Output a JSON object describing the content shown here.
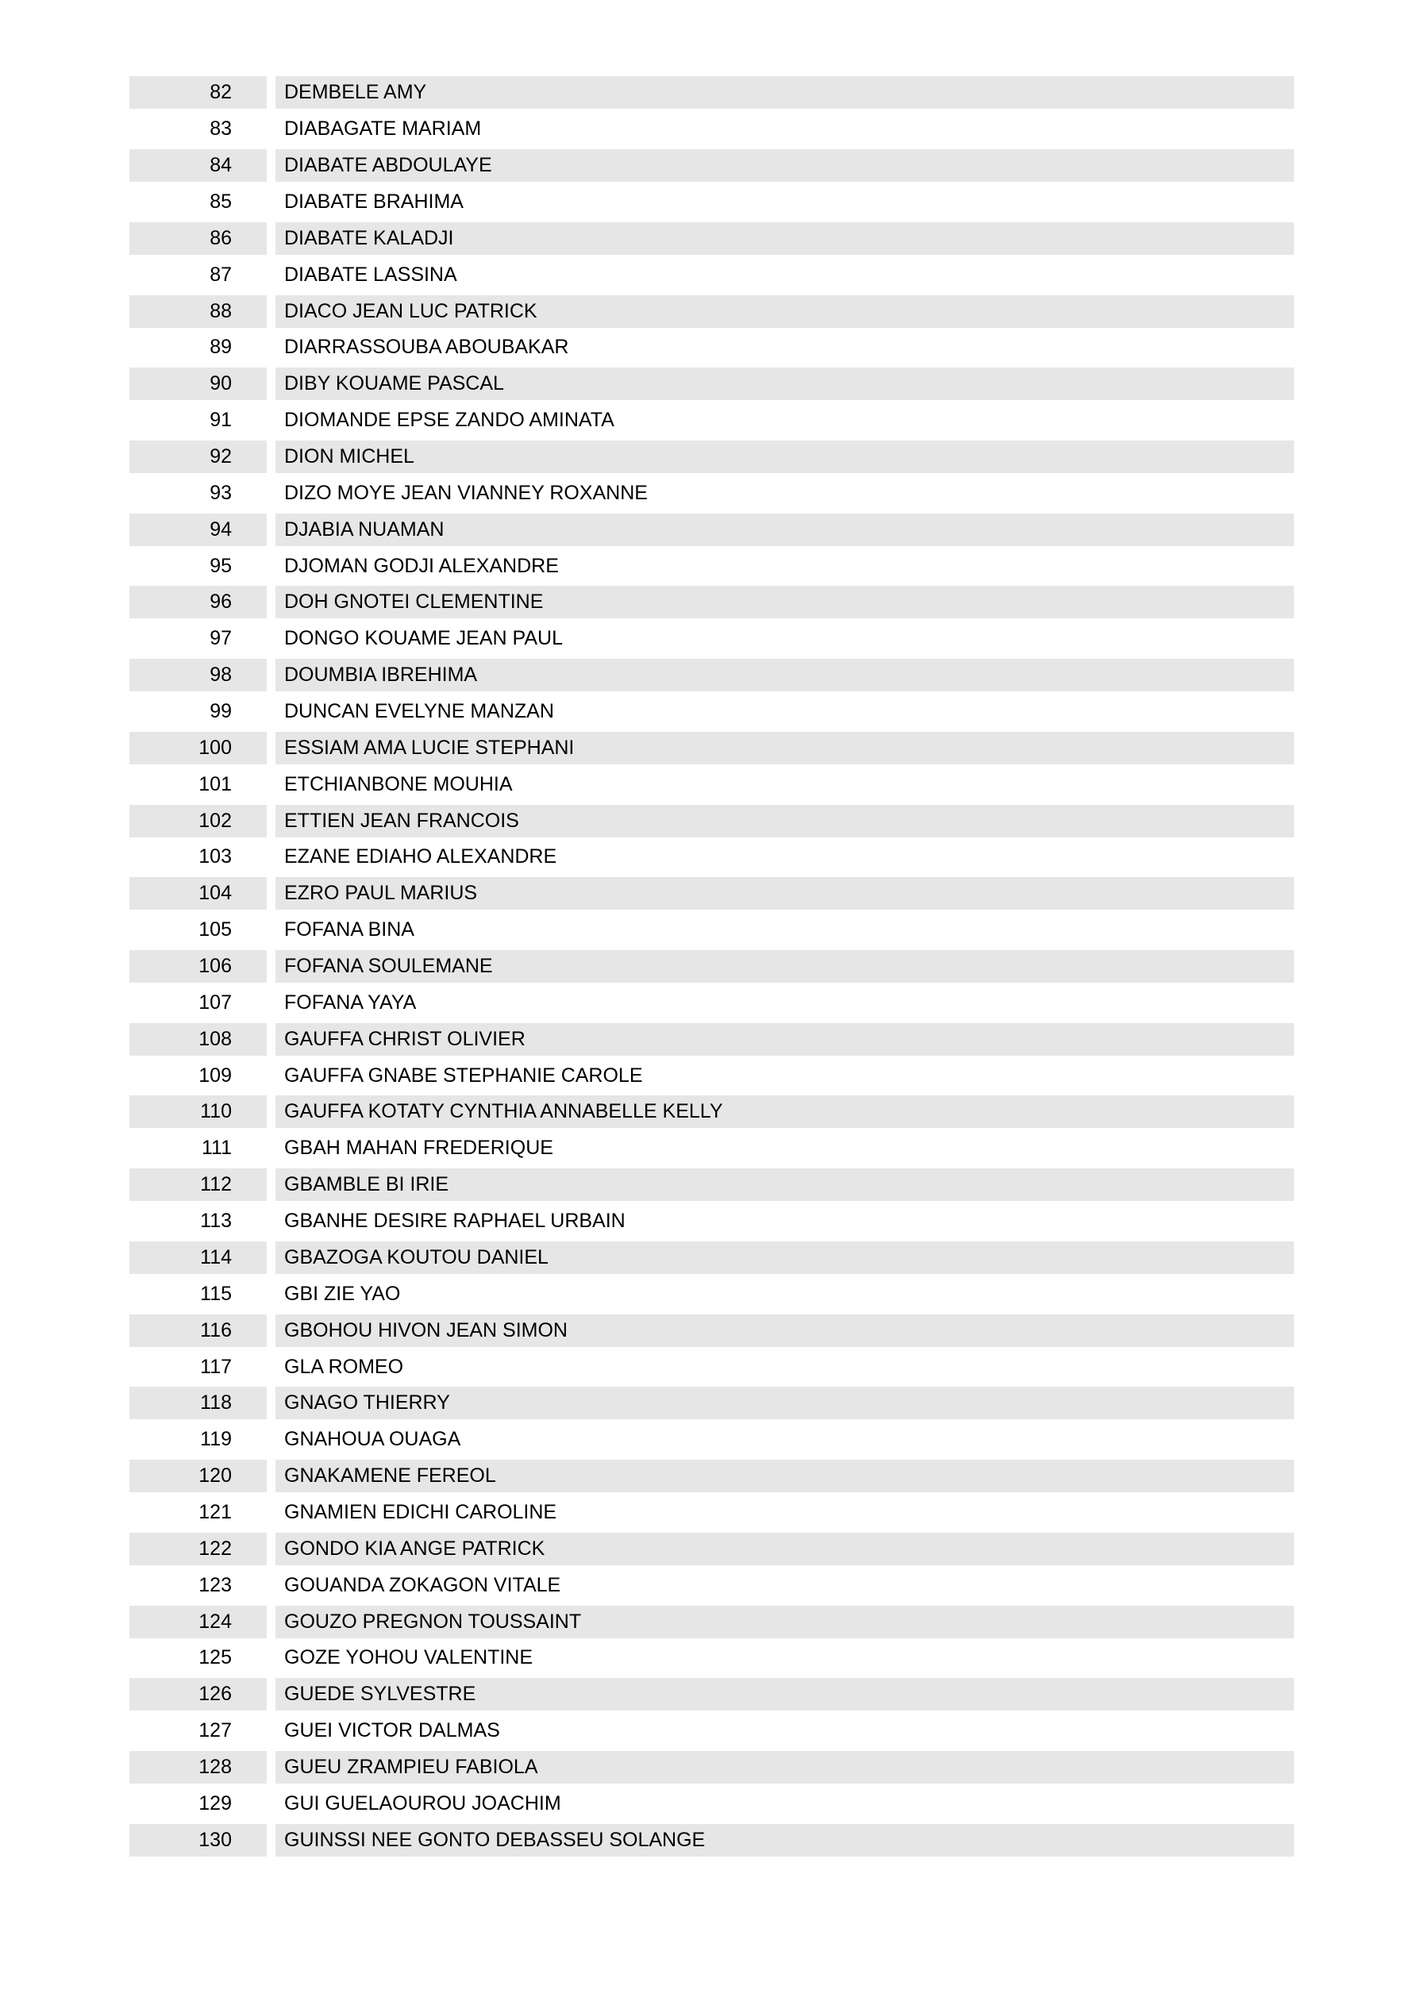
{
  "page": {
    "background_color": "#ffffff",
    "shading_color": "#e7e6e6",
    "text_color": "#000000"
  },
  "list": {
    "rows": [
      {
        "num": "82",
        "name": "DEMBELE AMY"
      },
      {
        "num": "83",
        "name": "DIABAGATE MARIAM"
      },
      {
        "num": "84",
        "name": "DIABATE ABDOULAYE"
      },
      {
        "num": "85",
        "name": "DIABATE BRAHIMA"
      },
      {
        "num": "86",
        "name": "DIABATE KALADJI"
      },
      {
        "num": "87",
        "name": "DIABATE LASSINA"
      },
      {
        "num": "88",
        "name": "DIACO JEAN LUC PATRICK"
      },
      {
        "num": "89",
        "name": "DIARRASSOUBA ABOUBAKAR"
      },
      {
        "num": "90",
        "name": "DIBY KOUAME PASCAL"
      },
      {
        "num": "91",
        "name": "DIOMANDE EPSE ZANDO AMINATA"
      },
      {
        "num": "92",
        "name": "DION MICHEL"
      },
      {
        "num": "93",
        "name": "DIZO MOYE JEAN VIANNEY ROXANNE"
      },
      {
        "num": "94",
        "name": "DJABIA NUAMAN"
      },
      {
        "num": "95",
        "name": "DJOMAN GODJI ALEXANDRE"
      },
      {
        "num": "96",
        "name": "DOH GNOTEI CLEMENTINE"
      },
      {
        "num": "97",
        "name": "DONGO KOUAME JEAN PAUL"
      },
      {
        "num": "98",
        "name": "DOUMBIA IBREHIMA"
      },
      {
        "num": "99",
        "name": "DUNCAN EVELYNE MANZAN"
      },
      {
        "num": "100",
        "name": "ESSIAM AMA LUCIE STEPHANI"
      },
      {
        "num": "101",
        "name": "ETCHIANBONE MOUHIA"
      },
      {
        "num": "102",
        "name": "ETTIEN JEAN FRANCOIS"
      },
      {
        "num": "103",
        "name": "EZANE EDIAHO ALEXANDRE"
      },
      {
        "num": "104",
        "name": "EZRO PAUL MARIUS"
      },
      {
        "num": "105",
        "name": "FOFANA BINA"
      },
      {
        "num": "106",
        "name": "FOFANA SOULEMANE"
      },
      {
        "num": "107",
        "name": "FOFANA YAYA"
      },
      {
        "num": "108",
        "name": "GAUFFA CHRIST OLIVIER"
      },
      {
        "num": "109",
        "name": "GAUFFA GNABE STEPHANIE CAROLE"
      },
      {
        "num": "110",
        "name": "GAUFFA KOTATY CYNTHIA ANNABELLE KELLY"
      },
      {
        "num": "111",
        "name": "GBAH MAHAN FREDERIQUE"
      },
      {
        "num": "112",
        "name": "GBAMBLE BI IRIE"
      },
      {
        "num": "113",
        "name": "GBANHE DESIRE RAPHAEL URBAIN"
      },
      {
        "num": "114",
        "name": "GBAZOGA KOUTOU DANIEL"
      },
      {
        "num": "115",
        "name": "GBI ZIE YAO"
      },
      {
        "num": "116",
        "name": "GBOHOU HIVON JEAN SIMON"
      },
      {
        "num": "117",
        "name": "GLA ROMEO"
      },
      {
        "num": "118",
        "name": "GNAGO THIERRY"
      },
      {
        "num": "119",
        "name": "GNAHOUA OUAGA"
      },
      {
        "num": "120",
        "name": "GNAKAMENE FEREOL"
      },
      {
        "num": "121",
        "name": "GNAMIEN EDICHI CAROLINE"
      },
      {
        "num": "122",
        "name": "GONDO KIA ANGE PATRICK"
      },
      {
        "num": "123",
        "name": "GOUANDA ZOKAGON VITALE"
      },
      {
        "num": "124",
        "name": "GOUZO PREGNON TOUSSAINT"
      },
      {
        "num": "125",
        "name": "GOZE YOHOU VALENTINE"
      },
      {
        "num": "126",
        "name": "GUEDE SYLVESTRE"
      },
      {
        "num": "127",
        "name": "GUEI VICTOR DALMAS"
      },
      {
        "num": "128",
        "name": "GUEU ZRAMPIEU FABIOLA"
      },
      {
        "num": "129",
        "name": "GUI GUELAOUROU JOACHIM"
      },
      {
        "num": "130",
        "name": "GUINSSI NEE GONTO DEBASSEU SOLANGE"
      }
    ]
  }
}
